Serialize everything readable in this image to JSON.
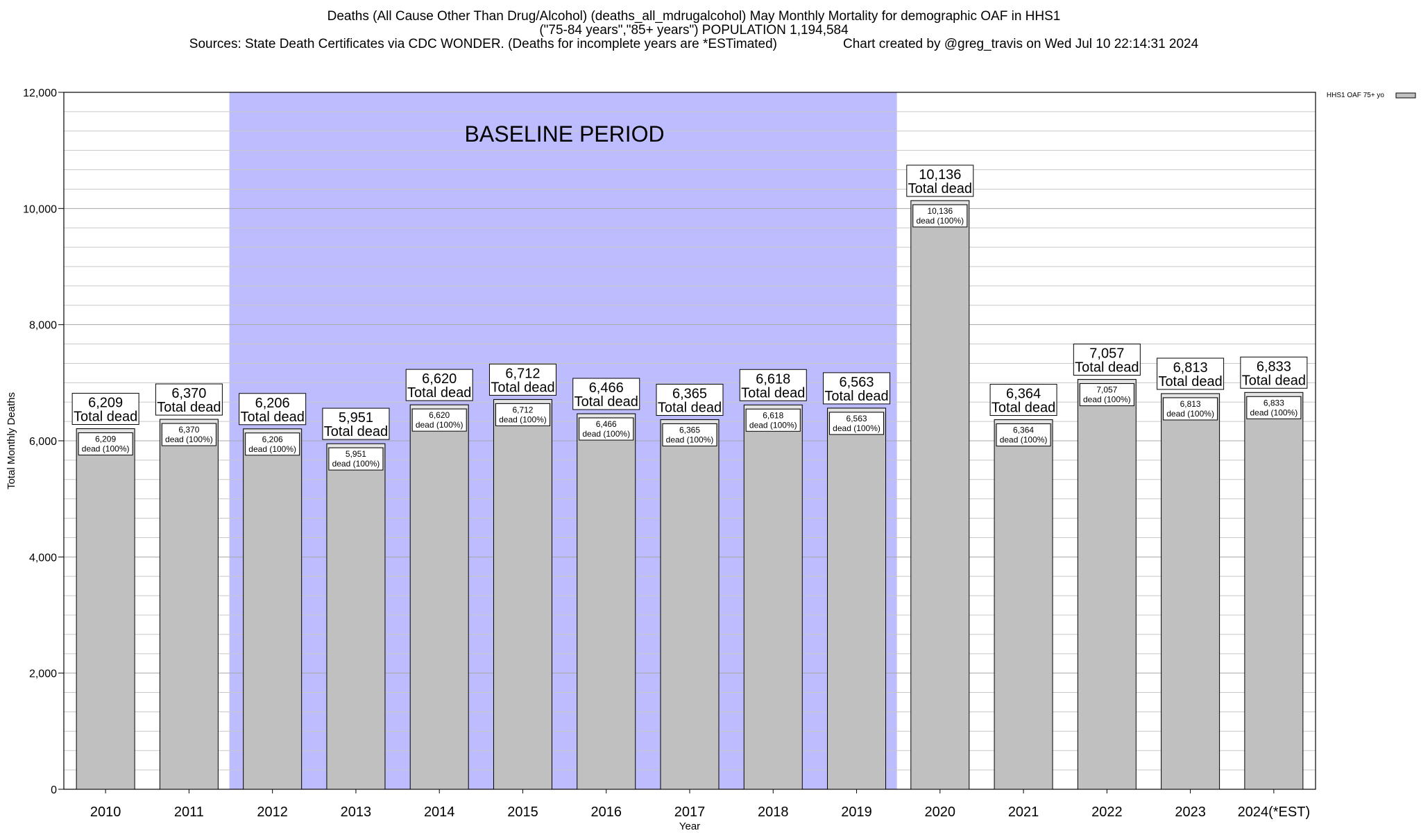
{
  "chart_data": {
    "type": "bar",
    "title": "Deaths (All Cause Other Than Drug/Alcohol) (deaths_all_mdrugalcohol) May Monthly Mortality for demographic OAF in HHS1",
    "subtitle": "(\"75-84 years\",\"85+ years\") POPULATION 1,194,584",
    "source": "Sources: State Death Certificates via CDC WONDER. (Deaths for incomplete years are *ESTimated)",
    "credit": "Chart created by @greg_travis on Wed Jul 10 22:14:31 2024",
    "xlabel": "Year",
    "ylabel": "Total Monthly Deaths",
    "ylim": [
      0,
      12000
    ],
    "yticks": [
      0,
      2000,
      4000,
      6000,
      8000,
      10000,
      12000
    ],
    "ytick_labels": [
      "0",
      "2,000",
      "4,000",
      "6,000",
      "8,000",
      "10,000",
      "12,000"
    ],
    "categories": [
      "2010",
      "2011",
      "2012",
      "2013",
      "2014",
      "2015",
      "2016",
      "2017",
      "2018",
      "2019",
      "2020",
      "2021",
      "2022",
      "2023",
      "2024(*EST)"
    ],
    "values": [
      6209,
      6370,
      6206,
      5951,
      6620,
      6712,
      6466,
      6365,
      6618,
      6563,
      10136,
      6364,
      7057,
      6813,
      6833
    ],
    "value_labels": [
      "6,209",
      "6,370",
      "6,206",
      "5,951",
      "6,620",
      "6,712",
      "6,466",
      "6,365",
      "6,618",
      "6,563",
      "10,136",
      "6,364",
      "7,057",
      "6,813",
      "6,833"
    ],
    "total_suffix": "Total dead",
    "inner_suffix": "dead (100%)",
    "baseline": {
      "label": "BASELINE PERIOD",
      "start": "2012",
      "end": "2019",
      "color": "#bcbcff"
    },
    "series": [
      {
        "name": "HHS1 OAF 75+ yo",
        "color": "#c0c0c0"
      }
    ],
    "legend_position": "top-right",
    "grid": true
  }
}
